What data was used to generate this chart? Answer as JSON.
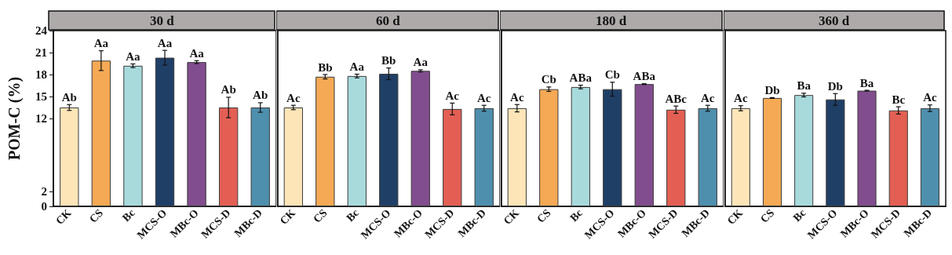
{
  "chart_data": [
    {
      "type": "bar",
      "title": "30 d",
      "ylabel": "POM-C (%)",
      "categories": [
        "CK",
        "CS",
        "Bc",
        "MCS-O",
        "MBc-O",
        "MCS-D",
        "MBc-D"
      ],
      "values": [
        13.5,
        19.9,
        19.2,
        20.3,
        19.7,
        13.5,
        13.5
      ],
      "errors": [
        0.4,
        1.35,
        0.25,
        1.0,
        0.2,
        1.4,
        0.65
      ],
      "value_labels": [
        "Ab",
        "Aa",
        "Aa",
        "Aa",
        "Aa",
        "Ab",
        "Ab"
      ],
      "colors": [
        "#fde5b8",
        "#f5a955",
        "#a8dadc",
        "#1f3f67",
        "#824d8e",
        "#e35f53",
        "#4f8fae"
      ],
      "ylim": [
        0,
        24
      ],
      "yticks": [
        0,
        2,
        12,
        15,
        18,
        21,
        24
      ],
      "grid": false
    },
    {
      "type": "bar",
      "title": "60 d",
      "categories": [
        "CK",
        "CS",
        "Bc",
        "MCS-O",
        "MBc-O",
        "MCS-D",
        "MBc-D"
      ],
      "values": [
        13.5,
        17.7,
        17.8,
        18.1,
        18.5,
        13.3,
        13.4
      ],
      "errors": [
        0.3,
        0.3,
        0.25,
        0.8,
        0.15,
        0.8,
        0.4
      ],
      "value_labels": [
        "Ac",
        "Bb",
        "Aa",
        "Bb",
        "Aa",
        "Ac",
        "Ac"
      ],
      "colors": [
        "#fde5b8",
        "#f5a955",
        "#a8dadc",
        "#1f3f67",
        "#824d8e",
        "#e35f53",
        "#4f8fae"
      ],
      "ylim": [
        0,
        24
      ],
      "yticks": [
        0,
        2,
        12,
        15,
        18,
        21,
        24
      ],
      "grid": false,
      "tick_labels": "x"
    },
    {
      "type": "bar",
      "title": "180 d",
      "categories": [
        "CK",
        "CS",
        "Bc",
        "MCS-O",
        "MBc-O",
        "MCS-D",
        "MBc-D"
      ],
      "values": [
        13.4,
        16.0,
        16.3,
        16.0,
        16.7,
        13.2,
        13.4
      ],
      "errors": [
        0.5,
        0.3,
        0.25,
        0.95,
        0.05,
        0.5,
        0.4
      ],
      "value_labels": [
        "Ac",
        "Cb",
        "ABa",
        "Cb",
        "ABa",
        "ABc",
        "Ac"
      ],
      "colors": [
        "#fde5b8",
        "#f5a955",
        "#a8dadc",
        "#1f3f67",
        "#824d8e",
        "#e35f53",
        "#4f8fae"
      ],
      "ylim": [
        0,
        24
      ],
      "yticks": [
        0,
        2,
        12,
        15,
        18,
        21,
        24
      ],
      "grid": false,
      "tick_labels": "x"
    },
    {
      "type": "bar",
      "title": "360 d",
      "categories": [
        "CK",
        "CS",
        "Bc",
        "MCS-O",
        "MBc-O",
        "MCS-D",
        "MBc-D"
      ],
      "values": [
        13.4,
        14.8,
        15.2,
        14.6,
        15.8,
        13.1,
        13.4
      ],
      "errors": [
        0.35,
        0.05,
        0.25,
        0.8,
        0.05,
        0.5,
        0.45
      ],
      "value_labels": [
        "Ac",
        "Db",
        "Ba",
        "Db",
        "Ba",
        "Bc",
        "Ac"
      ],
      "colors": [
        "#fde5b8",
        "#f5a955",
        "#a8dadc",
        "#1f3f67",
        "#824d8e",
        "#e35f53",
        "#4f8fae"
      ],
      "ylim": [
        0,
        24
      ],
      "yticks": [
        0,
        2,
        12,
        15,
        18,
        21,
        24
      ],
      "grid": false,
      "tick_labels": "x"
    }
  ]
}
